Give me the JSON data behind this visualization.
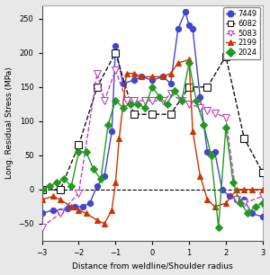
{
  "xlabel": "Distance from weldline/Shoulder radius",
  "ylabel": "Long. Residual Stress (MPa)",
  "xlim": [
    -3,
    3
  ],
  "ylim": [
    -75,
    270
  ],
  "yticks": [
    -50,
    0,
    50,
    100,
    150,
    200,
    250
  ],
  "xticks": [
    -3,
    -2,
    -1,
    0,
    1,
    2,
    3
  ],
  "series": {
    "7449": {
      "color": "#4444cc",
      "marker": "o",
      "linestyle": "-",
      "markersize": 4.5,
      "markerfacecolor": "#4444cc",
      "x": [
        -3.0,
        -2.7,
        -2.5,
        -2.3,
        -2.1,
        -1.9,
        -1.7,
        -1.5,
        -1.3,
        -1.1,
        -1.0,
        -0.8,
        -0.5,
        -0.3,
        0.0,
        0.3,
        0.5,
        0.7,
        0.9,
        1.0,
        1.1,
        1.3,
        1.5,
        1.7,
        1.9,
        2.1,
        2.3,
        2.5,
        2.7,
        3.0
      ],
      "y": [
        -35,
        -30,
        -32,
        -28,
        -25,
        -25,
        -20,
        5,
        20,
        85,
        210,
        155,
        160,
        165,
        160,
        165,
        155,
        235,
        260,
        240,
        235,
        135,
        55,
        55,
        0,
        -10,
        -15,
        -15,
        -35,
        -40
      ]
    },
    "6082": {
      "color": "#111111",
      "marker": "s",
      "linestyle": "--",
      "markersize": 6,
      "markerfacecolor": "white",
      "x": [
        -3.0,
        -2.5,
        -2.0,
        -1.5,
        -1.0,
        -0.5,
        0.0,
        0.5,
        1.0,
        1.5,
        2.0,
        2.5,
        3.0
      ],
      "y": [
        0,
        0,
        65,
        150,
        200,
        110,
        110,
        110,
        150,
        150,
        195,
        75,
        25
      ]
    },
    "5083": {
      "color": "#bb44bb",
      "marker": "v",
      "linestyle": "--",
      "markersize": 5.5,
      "markerfacecolor": "white",
      "x": [
        -3.0,
        -2.5,
        -2.0,
        -1.5,
        -1.3,
        -1.0,
        -0.7,
        -0.5,
        -0.2,
        0.0,
        0.3,
        0.5,
        0.8,
        1.0,
        1.3,
        1.5,
        1.7,
        2.0,
        2.3,
        2.5,
        3.0
      ],
      "y": [
        -55,
        -35,
        -5,
        170,
        130,
        175,
        130,
        130,
        130,
        130,
        130,
        140,
        130,
        125,
        120,
        115,
        112,
        105,
        -15,
        -20,
        -10
      ]
    },
    "2199": {
      "color": "#cc3300",
      "marker": "^",
      "linestyle": "-",
      "markersize": 5,
      "markerfacecolor": "#cc3300",
      "x": [
        -3.0,
        -2.7,
        -2.5,
        -2.2,
        -2.0,
        -1.8,
        -1.5,
        -1.3,
        -1.1,
        -1.0,
        -0.9,
        -0.7,
        -0.5,
        -0.3,
        0.0,
        0.3,
        0.5,
        0.7,
        1.0,
        1.1,
        1.3,
        1.5,
        1.7,
        2.0,
        2.3,
        2.5,
        2.7,
        3.0
      ],
      "y": [
        -15,
        -10,
        -15,
        -25,
        -30,
        -35,
        -45,
        -50,
        -30,
        10,
        75,
        170,
        170,
        165,
        165,
        165,
        170,
        185,
        190,
        85,
        20,
        -15,
        -25,
        -20,
        0,
        0,
        0,
        0
      ]
    },
    "2024": {
      "color": "#229922",
      "marker": "D",
      "linestyle": "-",
      "markersize": 4,
      "markerfacecolor": "#229922",
      "x": [
        -3.0,
        -2.8,
        -2.6,
        -2.4,
        -2.2,
        -2.0,
        -1.8,
        -1.6,
        -1.4,
        -1.2,
        -1.0,
        -0.8,
        -0.6,
        -0.4,
        -0.2,
        0.0,
        0.2,
        0.4,
        0.6,
        0.8,
        1.0,
        1.2,
        1.4,
        1.6,
        1.8,
        2.0,
        2.2,
        2.4,
        2.6,
        2.8,
        3.0
      ],
      "y": [
        0,
        5,
        10,
        15,
        5,
        55,
        55,
        30,
        15,
        95,
        130,
        120,
        125,
        125,
        120,
        150,
        135,
        125,
        145,
        130,
        185,
        130,
        95,
        50,
        -55,
        90,
        10,
        -20,
        -35,
        -25,
        -20
      ]
    }
  }
}
